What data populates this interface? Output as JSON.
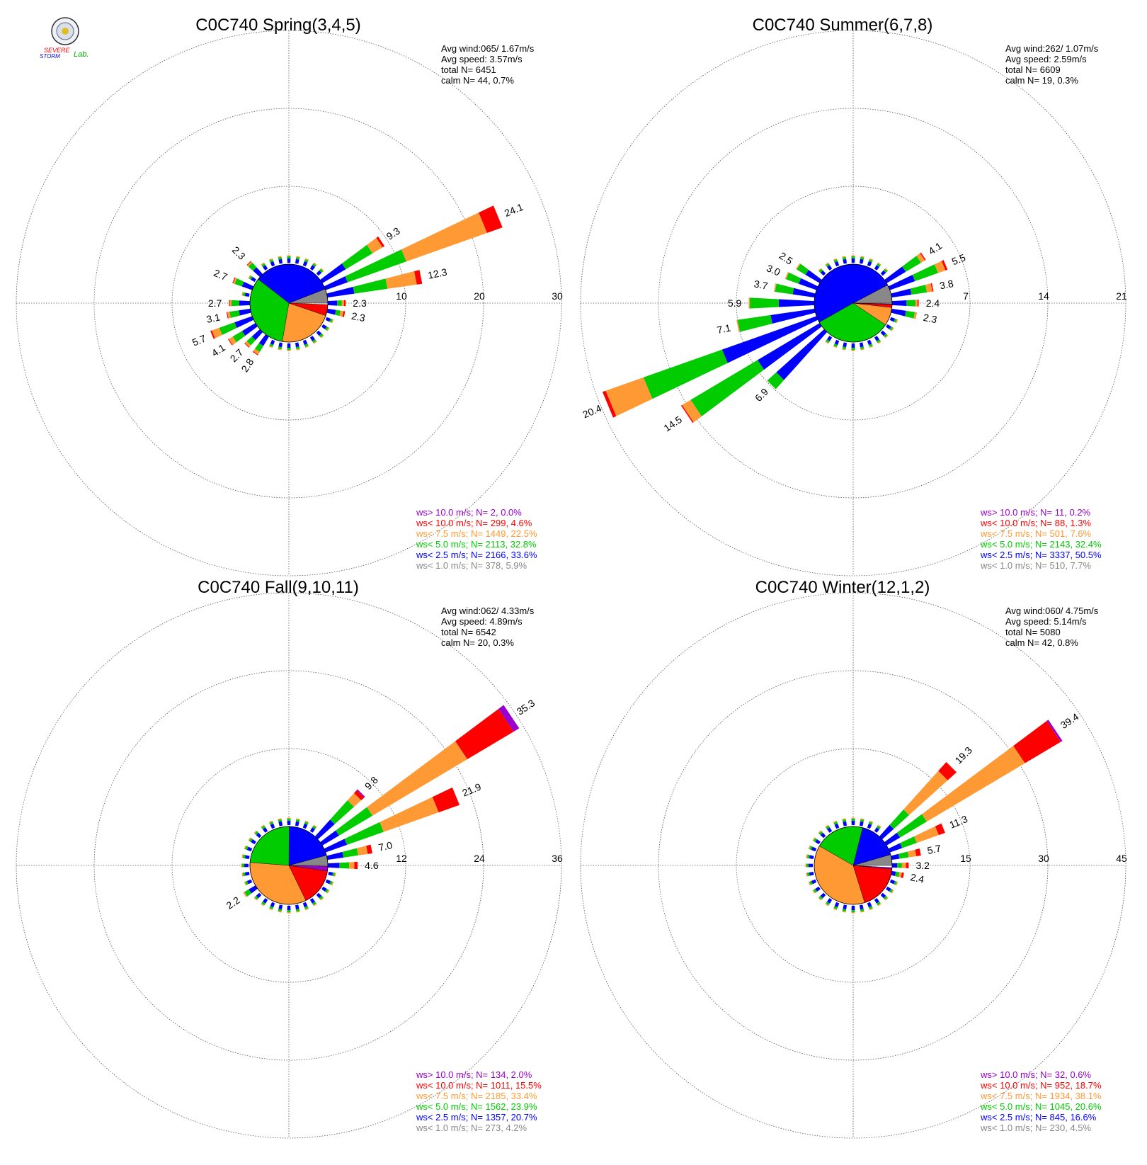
{
  "logo": {
    "text_severe": "SEVERE",
    "text_storm": "STORM",
    "text_lab": "Lab."
  },
  "colors": {
    "gt10": "#9900cc",
    "lt10": "#ff0000",
    "lt75": "#ff9933",
    "lt5": "#00cc00",
    "lt25": "#0000ff",
    "lt1": "#888888",
    "grid": "#555555"
  },
  "chart_data": [
    {
      "type": "wind-rose",
      "title": "C0C740 Spring(3,4,5)",
      "stats": [
        "Avg wind:065/ 1.67m/s",
        "Avg speed: 3.57m/s",
        "total N=       6451",
        "calm N=     44,   0.7%"
      ],
      "rings": [
        10,
        20,
        30
      ],
      "petals": [
        {
          "dir": 67.5,
          "total": 24.1,
          "parts": {
            "lt25": 3,
            "lt5": 8,
            "lt75": 11,
            "lt10": 2.1
          }
        },
        {
          "dir": 56.25,
          "total": 9.3,
          "parts": {
            "lt25": 3.5,
            "lt5": 4,
            "lt75": 1.5,
            "lt10": 0.3
          }
        },
        {
          "dir": 78.75,
          "total": 12.3,
          "parts": {
            "lt25": 3.5,
            "lt5": 4.3,
            "lt75": 3.8,
            "lt10": 0.7
          }
        },
        {
          "dir": 90,
          "total": 2.3,
          "parts": {
            "lt25": 1.2,
            "lt5": 0.6,
            "lt75": 0.3,
            "lt10": 0.2
          }
        },
        {
          "dir": 101.25,
          "total": 2.3,
          "parts": {
            "lt25": 1.1,
            "lt5": 0.6,
            "lt75": 0.4,
            "lt10": 0.2
          }
        },
        {
          "dir": 247.5,
          "total": 5.7,
          "parts": {
            "lt25": 2.4,
            "lt5": 2.1,
            "lt75": 1.0,
            "lt10": 0.2
          }
        },
        {
          "dir": 236.25,
          "total": 4.1,
          "parts": {
            "lt25": 2.0,
            "lt5": 1.4,
            "lt75": 0.6,
            "lt10": 0.1
          }
        },
        {
          "dir": 225,
          "total": 2.7,
          "parts": {
            "lt25": 1.4,
            "lt5": 0.9,
            "lt75": 0.3,
            "lt10": 0.1
          }
        },
        {
          "dir": 213.75,
          "total": 2.8,
          "parts": {
            "lt25": 1.4,
            "lt5": 0.9,
            "lt75": 0.4,
            "lt10": 0.1
          }
        },
        {
          "dir": 258.75,
          "total": 3.1,
          "parts": {
            "lt25": 1.5,
            "lt5": 1.2,
            "lt75": 0.3,
            "lt10": 0.1
          }
        },
        {
          "dir": 270,
          "total": 2.7,
          "parts": {
            "lt25": 1.4,
            "lt5": 1.0,
            "lt75": 0.2,
            "lt10": 0.1
          }
        },
        {
          "dir": 292.5,
          "total": 2.7,
          "parts": {
            "lt25": 1.4,
            "lt5": 1.0,
            "lt75": 0.2,
            "lt10": 0.1
          }
        },
        {
          "dir": 315,
          "total": 2.3,
          "parts": {
            "lt25": 1.2,
            "lt5": 0.8,
            "lt75": 0.2,
            "lt10": 0.1
          }
        }
      ],
      "pie": {
        "lt1": 5.9,
        "lt25": 33.6,
        "lt5": 32.8,
        "lt75": 22.5,
        "lt10": 4.6,
        "gt10": 0.0
      },
      "petal_labels": [
        {
          "dir": 67.5,
          "text": "24.1"
        },
        {
          "dir": 56.25,
          "text": "9.3"
        },
        {
          "dir": 78.75,
          "text": "12.3"
        },
        {
          "dir": 90,
          "text": "2.3"
        },
        {
          "dir": 101.25,
          "text": "2.3"
        },
        {
          "dir": 247.5,
          "text": "5.7"
        },
        {
          "dir": 236.25,
          "text": "4.1"
        },
        {
          "dir": 225,
          "text": "2.7"
        },
        {
          "dir": 213.75,
          "text": "2.8"
        },
        {
          "dir": 258.75,
          "text": "3.1"
        },
        {
          "dir": 270,
          "text": "2.7"
        },
        {
          "dir": 292.5,
          "text": "2.7"
        },
        {
          "dir": 315,
          "text": "2.3"
        }
      ],
      "legend": [
        {
          "key": "gt10",
          "text": "ws> 10.0 m/s; N=     2,  0.0%"
        },
        {
          "key": "lt10",
          "text": "ws< 10.0 m/s; N=   299,  4.6%"
        },
        {
          "key": "lt75",
          "text": "ws<  7.5 m/s; N=  1449, 22.5%"
        },
        {
          "key": "lt5",
          "text": "ws<  5.0 m/s; N=  2113, 32.8%"
        },
        {
          "key": "lt25",
          "text": "ws<  2.5 m/s; N=  2166, 33.6%"
        },
        {
          "key": "lt1",
          "text": "ws<  1.0 m/s; N=   378,  5.9%"
        }
      ]
    },
    {
      "type": "wind-rose",
      "title": "C0C740 Summer(6,7,8)",
      "stats": [
        "Avg wind:262/ 1.07m/s",
        "Avg speed: 2.59m/s",
        "total N=       6609",
        "calm N=     19,   0.3%"
      ],
      "rings": [
        7,
        14,
        21
      ],
      "petals": [
        {
          "dir": 247.5,
          "total": 20.4,
          "parts": {
            "lt25": 9,
            "lt5": 7.5,
            "lt75": 3.6,
            "lt10": 0.3
          }
        },
        {
          "dir": 236.25,
          "total": 14.5,
          "parts": {
            "lt25": 6.5,
            "lt5": 7.0,
            "lt75": 0.9,
            "lt10": 0.1
          }
        },
        {
          "dir": 225,
          "total": 6.9,
          "parts": {
            "lt25": 5.8,
            "lt5": 1.1
          }
        },
        {
          "dir": 258.75,
          "total": 7.1,
          "parts": {
            "lt25": 4.0,
            "lt5": 3.0,
            "lt75": 0.1
          }
        },
        {
          "dir": 270,
          "total": 5.9,
          "parts": {
            "lt25": 3.2,
            "lt5": 2.6,
            "lt75": 0.1
          }
        },
        {
          "dir": 281.25,
          "total": 3.7,
          "parts": {
            "lt25": 2.0,
            "lt5": 1.6,
            "lt75": 0.1
          }
        },
        {
          "dir": 292.5,
          "total": 3.0,
          "parts": {
            "lt25": 1.7,
            "lt5": 1.2,
            "lt75": 0.1
          }
        },
        {
          "dir": 303.75,
          "total": 2.5,
          "parts": {
            "lt25": 1.5,
            "lt5": 0.9,
            "lt75": 0.1
          }
        },
        {
          "dir": 56.25,
          "total": 4.1,
          "parts": {
            "lt25": 2.0,
            "lt5": 1.6,
            "lt75": 0.4,
            "lt10": 0.1
          }
        },
        {
          "dir": 67.5,
          "total": 5.5,
          "parts": {
            "lt25": 2.4,
            "lt5": 2.2,
            "lt75": 0.7,
            "lt10": 0.2
          }
        },
        {
          "dir": 78.75,
          "total": 3.8,
          "parts": {
            "lt25": 1.8,
            "lt5": 1.4,
            "lt75": 0.5,
            "lt10": 0.1
          }
        },
        {
          "dir": 90,
          "total": 2.4,
          "parts": {
            "lt25": 1.3,
            "lt5": 0.8,
            "lt75": 0.2,
            "lt10": 0.1
          }
        },
        {
          "dir": 101.25,
          "total": 2.3,
          "parts": {
            "lt25": 1.3,
            "lt5": 0.8,
            "lt75": 0.2
          }
        }
      ],
      "pie": {
        "lt1": 7.7,
        "lt25": 50.5,
        "lt5": 32.4,
        "lt75": 7.6,
        "lt10": 1.3,
        "gt10": 0.2
      },
      "petal_labels": [
        {
          "dir": 247.5,
          "text": "20.4"
        },
        {
          "dir": 236.25,
          "text": "14.5"
        },
        {
          "dir": 225,
          "text": "6.9"
        },
        {
          "dir": 258.75,
          "text": "7.1"
        },
        {
          "dir": 270,
          "text": "5.9"
        },
        {
          "dir": 281.25,
          "text": "3.7"
        },
        {
          "dir": 292.5,
          "text": "3.0"
        },
        {
          "dir": 303.75,
          "text": "2.5"
        },
        {
          "dir": 56.25,
          "text": "4.1"
        },
        {
          "dir": 67.5,
          "text": "5.5"
        },
        {
          "dir": 78.75,
          "text": "3.8"
        },
        {
          "dir": 90,
          "text": "2.4"
        },
        {
          "dir": 101.25,
          "text": "2.3"
        }
      ],
      "legend": [
        {
          "key": "gt10",
          "text": "ws> 10.0 m/s; N=    11,  0.2%"
        },
        {
          "key": "lt10",
          "text": "ws< 10.0 m/s; N=    88,  1.3%"
        },
        {
          "key": "lt75",
          "text": "ws<  7.5 m/s; N=   501,  7.6%"
        },
        {
          "key": "lt5",
          "text": "ws<  5.0 m/s; N=  2143, 32.4%"
        },
        {
          "key": "lt25",
          "text": "ws<  2.5 m/s; N=  3337, 50.5%"
        },
        {
          "key": "lt1",
          "text": "ws<  1.0 m/s; N=   510,  7.7%"
        }
      ]
    },
    {
      "type": "wind-rose",
      "title": "C0C740 Fall(9,10,11)",
      "stats": [
        "Avg wind:062/ 4.33m/s",
        "Avg speed: 4.89m/s",
        "total N=       6542",
        "calm N=     20,   0.3%"
      ],
      "rings": [
        12,
        24,
        36
      ],
      "petals": [
        {
          "dir": 56.25,
          "total": 35.3,
          "parts": {
            "lt25": 3,
            "lt5": 6,
            "lt75": 17,
            "lt10": 8.3,
            "gt10": 1.0
          }
        },
        {
          "dir": 45,
          "total": 9.8,
          "parts": {
            "lt25": 3.5,
            "lt5": 4,
            "lt75": 1.5,
            "lt10": 0.6,
            "gt10": 0.2
          }
        },
        {
          "dir": 67.5,
          "total": 21.9,
          "parts": {
            "lt25": 3.5,
            "lt5": 6,
            "lt75": 9,
            "lt10": 3.4
          }
        },
        {
          "dir": 78.75,
          "total": 7.0,
          "parts": {
            "lt25": 2.5,
            "lt5": 2.3,
            "lt75": 1.5,
            "lt10": 0.7
          }
        },
        {
          "dir": 90,
          "total": 4.6,
          "parts": {
            "lt25": 1.8,
            "lt5": 1.5,
            "lt75": 0.8,
            "lt10": 0.5
          }
        },
        {
          "dir": 236.25,
          "total": 2.2,
          "parts": {
            "lt25": 1.2,
            "lt5": 0.8,
            "lt75": 0.2
          }
        }
      ],
      "pie": {
        "lt1": 4.2,
        "lt25": 20.7,
        "lt5": 23.9,
        "lt75": 33.4,
        "lt10": 15.5,
        "gt10": 2.0
      },
      "petal_labels": [
        {
          "dir": 56.25,
          "text": "35.3"
        },
        {
          "dir": 45,
          "text": "9.8"
        },
        {
          "dir": 67.5,
          "text": "21.9"
        },
        {
          "dir": 78.75,
          "text": "7.0"
        },
        {
          "dir": 90,
          "text": "4.6"
        },
        {
          "dir": 236.25,
          "text": "2.2"
        }
      ],
      "legend": [
        {
          "key": "gt10",
          "text": "ws> 10.0 m/s; N=   134,  2.0%"
        },
        {
          "key": "lt10",
          "text": "ws< 10.0 m/s; N=  1011, 15.5%"
        },
        {
          "key": "lt75",
          "text": "ws<  7.5 m/s; N=  2185, 33.4%"
        },
        {
          "key": "lt5",
          "text": "ws<  5.0 m/s; N=  1562, 23.9%"
        },
        {
          "key": "lt25",
          "text": "ws<  2.5 m/s; N=  1357, 20.7%"
        },
        {
          "key": "lt1",
          "text": "ws<  1.0 m/s; N=   273,  4.2%"
        }
      ]
    },
    {
      "type": "wind-rose",
      "title": "C0C740 Winter(12,1,2)",
      "stats": [
        "Avg wind:060/ 4.75m/s",
        "Avg speed: 5.14m/s",
        "total N=       5080",
        "calm N=     42,   0.8%"
      ],
      "rings": [
        15,
        30,
        45
      ],
      "petals": [
        {
          "dir": 56.25,
          "total": 39.4,
          "parts": {
            "lt25": 3,
            "lt5": 6,
            "lt75": 22,
            "lt10": 8.0,
            "gt10": 0.4
          }
        },
        {
          "dir": 45,
          "total": 19.3,
          "parts": {
            "lt25": 3,
            "lt5": 4,
            "lt75": 10,
            "lt10": 2.3
          }
        },
        {
          "dir": 67.5,
          "total": 11.3,
          "parts": {
            "lt25": 2.5,
            "lt5": 3,
            "lt75": 4.5,
            "lt10": 1.3
          }
        },
        {
          "dir": 78.75,
          "total": 5.7,
          "parts": {
            "lt25": 1.5,
            "lt5": 1.8,
            "lt75": 1.5,
            "lt10": 0.9
          }
        },
        {
          "dir": 90,
          "total": 3.2,
          "parts": {
            "lt25": 1.0,
            "lt5": 0.9,
            "lt75": 0.8,
            "lt10": 0.5
          }
        },
        {
          "dir": 101.25,
          "total": 2.4,
          "parts": {
            "lt25": 0.8,
            "lt5": 0.7,
            "lt75": 0.5,
            "lt10": 0.4
          }
        }
      ],
      "pie": {
        "lt1": 4.5,
        "lt25": 16.6,
        "lt5": 20.6,
        "lt75": 38.1,
        "lt10": 18.7,
        "gt10": 0.6
      },
      "petal_labels": [
        {
          "dir": 56.25,
          "text": "39.4"
        },
        {
          "dir": 45,
          "text": "19.3"
        },
        {
          "dir": 67.5,
          "text": "11.3"
        },
        {
          "dir": 78.75,
          "text": "5.7"
        },
        {
          "dir": 90,
          "text": "3.2"
        },
        {
          "dir": 101.25,
          "text": "2.4"
        }
      ],
      "legend": [
        {
          "key": "gt10",
          "text": "ws> 10.0 m/s; N=    32,  0.6%"
        },
        {
          "key": "lt10",
          "text": "ws< 10.0 m/s; N=   952, 18.7%"
        },
        {
          "key": "lt75",
          "text": "ws<  7.5 m/s; N=  1934, 38.1%"
        },
        {
          "key": "lt5",
          "text": "ws<  5.0 m/s; N=  1045, 20.6%"
        },
        {
          "key": "lt25",
          "text": "ws<  2.5 m/s; N=   845, 16.6%"
        },
        {
          "key": "lt1",
          "text": "ws<  1.0 m/s; N=   230,  4.5%"
        }
      ]
    }
  ]
}
